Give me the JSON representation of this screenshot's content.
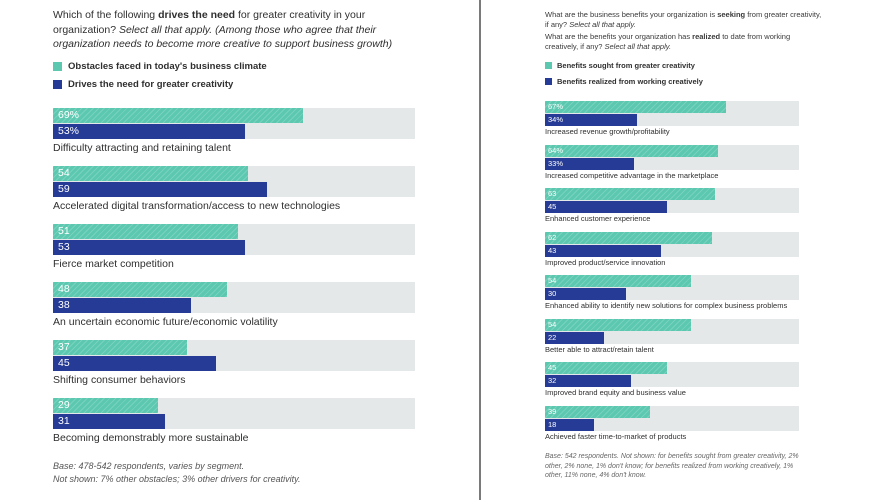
{
  "left_panel": {
    "question_prefix": "Which of the following ",
    "question_bold": "drives the need",
    "question_suffix": " for greater creativity in your organization? ",
    "question_italic": "Select all that apply. (Among those who agree that their organization needs to become more creative to support business growth)",
    "note_line1": "Base: 478-542 respondents, varies by segment.",
    "note_line2": "Not shown: 7% other obstacles; 3% other drivers for creativity."
  },
  "right_panel": {
    "question1_prefix": "What are the business benefits your organization is ",
    "question1_bold": "seeking",
    "question1_suffix": " from greater creativity, if any? ",
    "question1_italic": "Select all that apply.",
    "question2_prefix": "What are the benefits your organization has ",
    "question2_bold": "realized",
    "question2_suffix": " to date from working creatively, if any? ",
    "question2_italic": "Select all that apply.",
    "note": "Base: 542 respondents. Not shown: for benefits sought from greater creativity, 2% other, 2% none, 1% don't know; for benefits realized from working creatively, 1% other, 11% none, 4% don't know."
  },
  "colors": {
    "teal": "#5bc8af",
    "navy": "#263b96",
    "track": "#e4e8e8"
  },
  "chart_data": [
    {
      "type": "bar",
      "orientation": "horizontal",
      "xlim": [
        0,
        100
      ],
      "categories": [
        "Difficulty attracting and retaining talent",
        "Accelerated digital transformation/access to new technologies",
        "Fierce market competition",
        "An uncertain economic future/economic volatility",
        "Shifting consumer behaviors",
        "Becoming demonstrably more sustainable"
      ],
      "series": [
        {
          "name": "Obstacles faced in today's business climate",
          "values": [
            69,
            54,
            51,
            48,
            37,
            29
          ],
          "labels": [
            "69%",
            "54",
            "51",
            "48",
            "37",
            "29"
          ]
        },
        {
          "name": "Drives the need for greater creativity",
          "values": [
            53,
            59,
            53,
            38,
            45,
            31
          ],
          "labels": [
            "53%",
            "59",
            "53",
            "38",
            "45",
            "31"
          ]
        }
      ]
    },
    {
      "type": "bar",
      "orientation": "horizontal",
      "xlim": [
        0,
        100
      ],
      "categories": [
        "Increased revenue growth/profitability",
        "Increased competitive advantage in the marketplace",
        "Enhanced customer experience",
        "Improved product/service innovation",
        "Enhanced ability to identify new solutions for complex business problems",
        "Better able to attract/retain talent",
        "Improved brand equity and business value",
        "Achieved faster time-to-market of products"
      ],
      "series": [
        {
          "name": "Benefits sought from greater creativity",
          "values": [
            67,
            64,
            63,
            62,
            54,
            54,
            45,
            39
          ],
          "labels": [
            "67%",
            "64%",
            "63",
            "62",
            "54",
            "54",
            "45",
            "39"
          ]
        },
        {
          "name": "Benefits realized from working creatively",
          "values": [
            34,
            33,
            45,
            43,
            30,
            22,
            32,
            18
          ],
          "labels": [
            "34%",
            "33%",
            "45",
            "43",
            "30",
            "22",
            "32",
            "18"
          ]
        }
      ]
    }
  ]
}
